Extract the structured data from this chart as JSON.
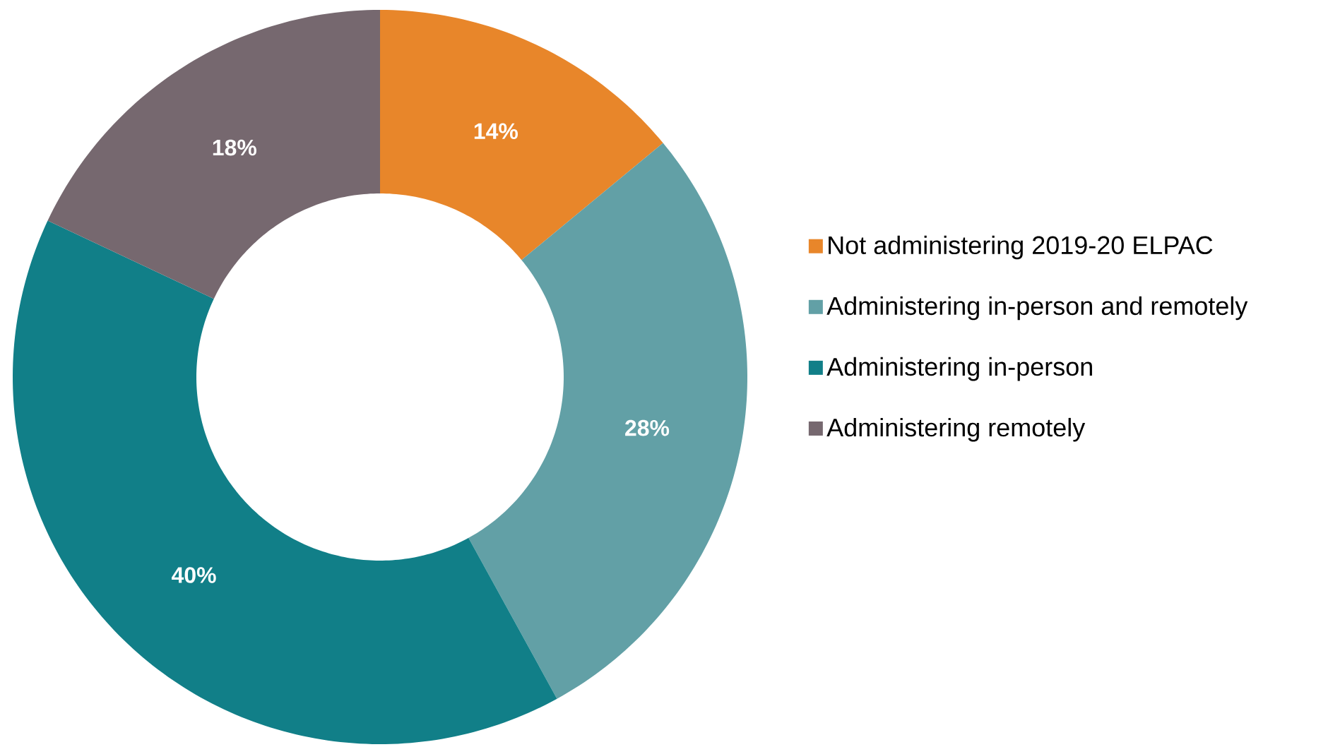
{
  "chart_data": {
    "type": "donut",
    "categories": [
      "Not administering 2019-20 ELPAC",
      "Administering in-person and remotely",
      "Administering in-person",
      "Administering remotely"
    ],
    "values": [
      14,
      28,
      40,
      18
    ],
    "value_labels": [
      "14%",
      "28%",
      "40%",
      "18%"
    ],
    "colors": [
      "#e8862a",
      "#62a0a6",
      "#117f88",
      "#76686f"
    ],
    "legend": "right"
  }
}
